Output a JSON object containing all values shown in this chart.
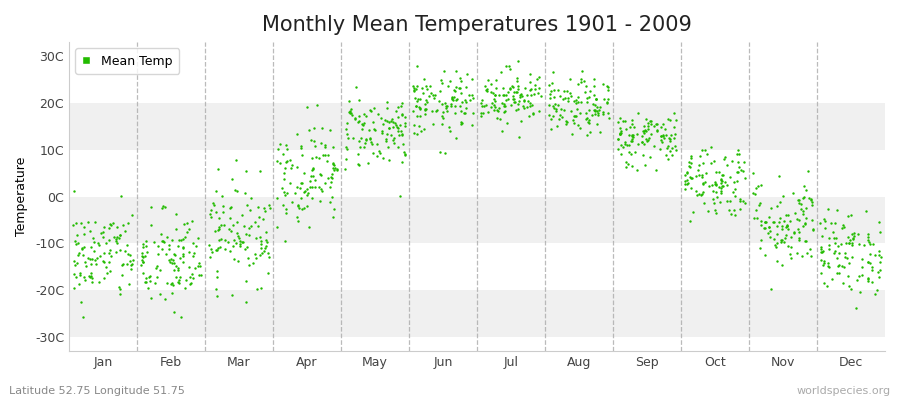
{
  "title": "Monthly Mean Temperatures 1901 - 2009",
  "ylabel": "Temperature",
  "xlabel_labels": [
    "Jan",
    "Feb",
    "Mar",
    "Apr",
    "May",
    "Jun",
    "Jul",
    "Aug",
    "Sep",
    "Oct",
    "Nov",
    "Dec"
  ],
  "ytick_labels": [
    "-30C",
    "-20C",
    "-10C",
    "0C",
    "10C",
    "20C",
    "30C"
  ],
  "ytick_values": [
    -30,
    -20,
    -10,
    0,
    10,
    20,
    30
  ],
  "ylim": [
    -33,
    33
  ],
  "dot_color": "#22bb00",
  "bg_color": "#ffffff",
  "plot_bg_even": "#f0f0f0",
  "plot_bg_odd": "#ffffff",
  "dashed_color": "#aaaaaa",
  "subtitle": "Latitude 52.75 Longitude 51.75",
  "watermark": "worldspecies.org",
  "legend_label": "Mean Temp",
  "monthly_means": [
    -12.5,
    -14.0,
    -7.5,
    5.0,
    14.0,
    19.5,
    21.5,
    19.0,
    12.5,
    3.5,
    -5.5,
    -12.0
  ],
  "monthly_stds": [
    5.0,
    5.5,
    5.5,
    5.5,
    4.0,
    3.5,
    3.0,
    3.0,
    3.0,
    4.0,
    5.0,
    4.5
  ],
  "n_years": 109,
  "title_fontsize": 15,
  "axis_fontsize": 9,
  "legend_fontsize": 9
}
